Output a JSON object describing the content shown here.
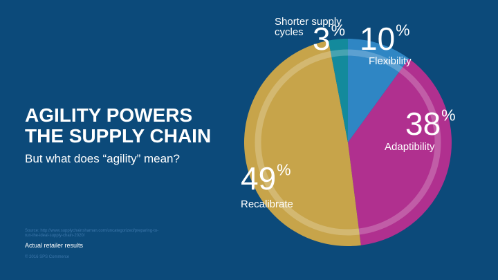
{
  "slide": {
    "title_line1": "AGILITY POWERS",
    "title_line2": "THE SUPPLY CHAIN",
    "subtitle": "But what does “agility” mean?",
    "source": "Source: http://www.supplychainshaman.com/uncategorized/preparing-to-run-the-ideal-supply-chain-2020/",
    "note": "Actual retailer results",
    "copyright": "© 2016 SPS Commerce"
  },
  "chart_data": {
    "type": "pie",
    "categories": [
      "Flexibility",
      "Adaptibility",
      "Recalibrate",
      "Shorter supply cycles"
    ],
    "values": [
      10,
      38,
      49,
      3
    ],
    "value_labels": [
      "10",
      "38",
      "49",
      "3"
    ],
    "percent_symbol": "%",
    "label_lines": [
      [
        "Flexibility"
      ],
      [
        "Adaptibility"
      ],
      [
        "Recalibrate"
      ],
      [
        "Shorter supply",
        "cycles"
      ]
    ],
    "colors": [
      "#2f86c4",
      "#b0308f",
      "#c7a44a",
      "#138a9c"
    ],
    "start_angle_deg": 0,
    "direction": "clockwise"
  }
}
